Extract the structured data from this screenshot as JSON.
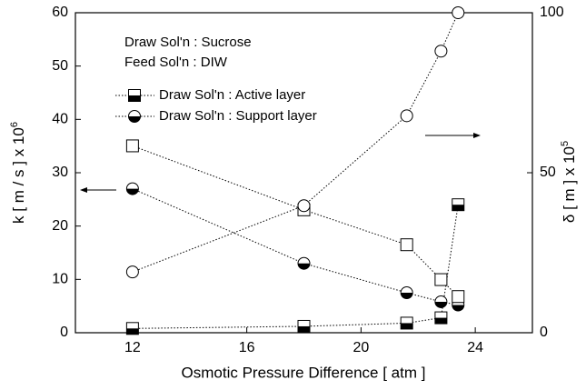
{
  "chart_data": {
    "type": "line",
    "annotations": [
      "Draw Sol'n :  Sucrose",
      "Feed Sol'n :  DIW"
    ],
    "x_label": "Osmotic Pressure Difference [ atm ]",
    "y_label": {
      "text": "k [ m / s ]  x 10",
      "sup": "6"
    },
    "y2_label": {
      "text": "δ [ m ] x 10",
      "sup": "5"
    },
    "x": [
      12,
      18,
      21.6,
      22.8,
      23.4
    ],
    "xlim": [
      10,
      26
    ],
    "xticks": [
      12,
      16,
      20,
      24
    ],
    "ylim": [
      0,
      60
    ],
    "yticks": [
      0,
      10,
      20,
      30,
      40,
      50,
      60
    ],
    "y2lim": [
      0,
      100
    ],
    "y2ticks": [
      0,
      50,
      100
    ],
    "series": [
      {
        "name": "Draw Sol'n : Active    layer",
        "marker": "square-half",
        "color": "#000000",
        "values": [
          0.8,
          1.2,
          1.8,
          2.8,
          24
        ]
      },
      {
        "name": "Draw Sol'n : Support layer",
        "marker": "circle-half",
        "color": "#000000",
        "values": [
          27,
          13,
          7.5,
          5.8,
          5.2
        ]
      },
      {
        "marker": "square-open",
        "color": "#000000",
        "axis": "y2",
        "values": [
          58.4,
          38.4,
          27.5,
          16.6,
          11.3
        ]
      },
      {
        "marker": "circle-open",
        "color": "#000000",
        "axis": "y2",
        "values": [
          19,
          39.7,
          67.8,
          88,
          100
        ]
      }
    ]
  }
}
